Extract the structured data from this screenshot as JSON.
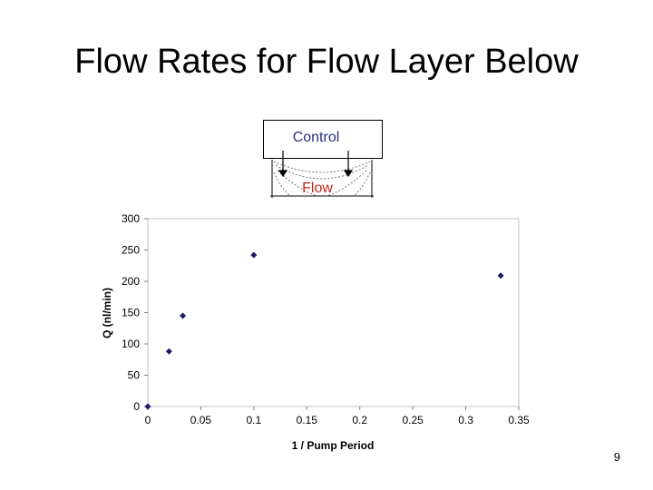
{
  "slide": {
    "title": "Flow Rates for Flow Layer Below",
    "page_number": "9"
  },
  "diagram": {
    "control_label": "Control",
    "flow_label": "Flow",
    "colors": {
      "control_text": "#2b2b80",
      "flow_text": "#c0281e"
    }
  },
  "chart_data": {
    "type": "scatter",
    "title": "",
    "xlabel": "1 / Pump Period",
    "ylabel": "Q (nl/min)",
    "xlim": [
      0,
      0.35
    ],
    "ylim": [
      0,
      300
    ],
    "xticks": [
      0,
      0.05,
      0.1,
      0.15,
      0.2,
      0.25,
      0.3,
      0.35
    ],
    "xtick_labels": [
      "0",
      "0.05",
      "0.1",
      "0.15",
      "0.2",
      "0.25",
      "0.3",
      "0.35"
    ],
    "yticks": [
      0,
      50,
      100,
      150,
      200,
      250,
      300
    ],
    "ytick_labels": [
      "0",
      "50",
      "100",
      "150",
      "200",
      "250",
      "300"
    ],
    "grid": false,
    "marker": "diamond",
    "marker_color": "#1a1a66",
    "series": [
      {
        "x": [
          0,
          0.02,
          0.033,
          0.1,
          0.333
        ],
        "y": [
          0,
          88,
          145,
          242,
          209
        ]
      }
    ]
  }
}
